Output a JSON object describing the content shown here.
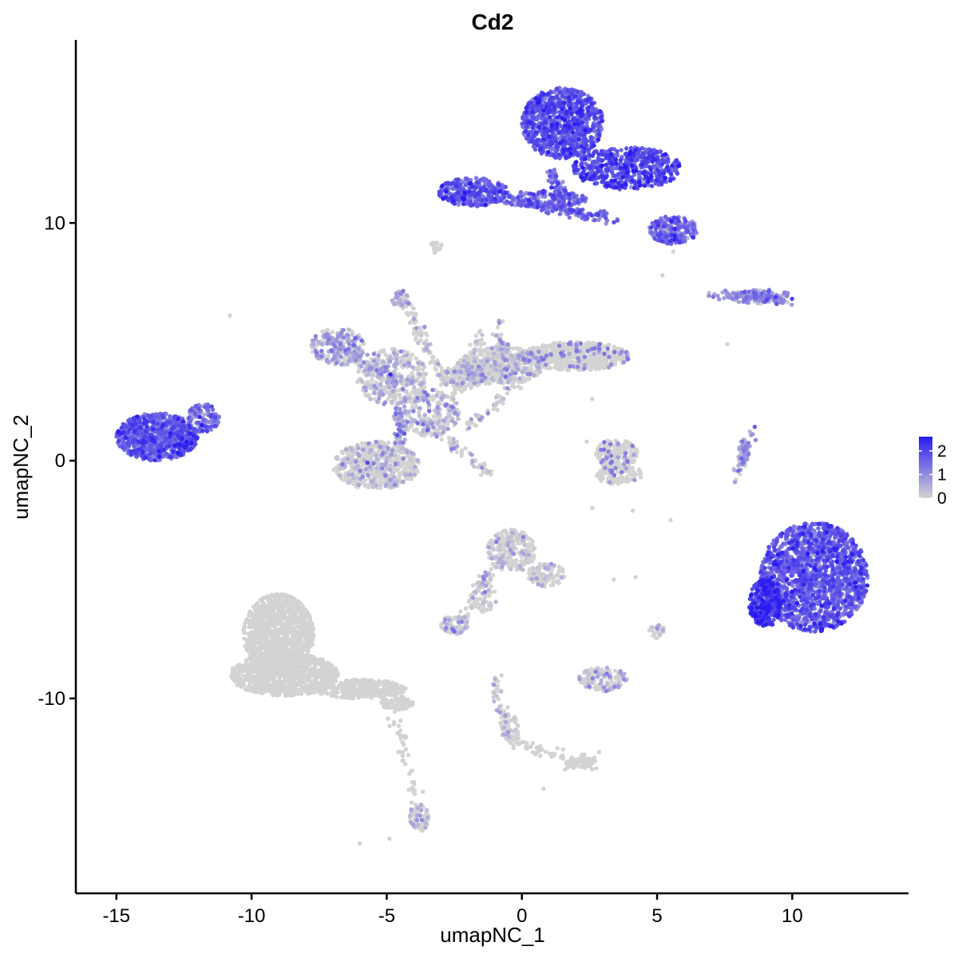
{
  "chart_data": {
    "type": "scatter",
    "title": "Cd2",
    "xlabel": "umapNC_1",
    "ylabel": "umapNC_2",
    "xlim": [
      -16.5,
      14.3
    ],
    "ylim": [
      -18.2,
      17.7
    ],
    "x_ticks": [
      -15,
      -10,
      -5,
      0,
      5,
      10
    ],
    "x_tick_labels": [
      "-15",
      "-10",
      "-5",
      "0",
      "5",
      "10"
    ],
    "y_ticks": [
      -10,
      0,
      10
    ],
    "y_tick_labels": [
      "-10",
      "0",
      "10"
    ],
    "grid": false,
    "legend": {
      "placement": "right",
      "type": "colorbar",
      "ticks": [
        0,
        1,
        2
      ],
      "tick_labels": [
        "0",
        "1",
        "2"
      ],
      "range": [
        0,
        2.6
      ]
    },
    "colors": {
      "low": "#d3d3d3",
      "high": "#2b1bf0"
    },
    "clusters": [
      {
        "cx": 1.5,
        "cy": 14.2,
        "rx": 1.5,
        "ry": 1.5,
        "n": 900,
        "expr": 1.6
      },
      {
        "cx": 3.9,
        "cy": 12.3,
        "rx": 2.0,
        "ry": 0.9,
        "n": 500,
        "expr": 1.8
      },
      {
        "cx": 5.6,
        "cy": 9.7,
        "rx": 0.9,
        "ry": 0.6,
        "n": 220,
        "expr": 1.3
      },
      {
        "cx": -1.8,
        "cy": 11.3,
        "rx": 1.3,
        "ry": 0.6,
        "n": 320,
        "expr": 1.5
      },
      {
        "cx": 0.8,
        "cy": 11.0,
        "rx": 1.6,
        "ry": 0.35,
        "n": 180,
        "expr": 1.3
      },
      {
        "cx": 8.8,
        "cy": 6.9,
        "rx": 1.2,
        "ry": 0.3,
        "n": 120,
        "expr": 0.9
      },
      {
        "cx": -3.2,
        "cy": 9.0,
        "rx": 0.25,
        "ry": 0.25,
        "n": 20,
        "expr": 0.0
      },
      {
        "cx": -13.5,
        "cy": 1.0,
        "rx": 1.5,
        "ry": 1.0,
        "n": 800,
        "expr": 1.5
      },
      {
        "cx": -11.8,
        "cy": 1.8,
        "rx": 0.6,
        "ry": 0.6,
        "n": 120,
        "expr": 1.2
      },
      {
        "cx": -6.8,
        "cy": 4.8,
        "rx": 1.0,
        "ry": 0.8,
        "n": 200,
        "expr": 0.5
      },
      {
        "cx": -4.8,
        "cy": 3.5,
        "rx": 1.3,
        "ry": 1.2,
        "n": 350,
        "expr": 0.2
      },
      {
        "cx": -3.5,
        "cy": 2.0,
        "rx": 1.2,
        "ry": 1.0,
        "n": 250,
        "expr": 0.25
      },
      {
        "cx": -5.4,
        "cy": -0.2,
        "rx": 1.6,
        "ry": 1.0,
        "n": 600,
        "expr": 0.05
      },
      {
        "cx": -2.2,
        "cy": 3.5,
        "rx": 0.8,
        "ry": 0.5,
        "n": 160,
        "expr": 0.1
      },
      {
        "cx": -0.8,
        "cy": 4.0,
        "rx": 1.6,
        "ry": 0.8,
        "n": 500,
        "expr": 0.05
      },
      {
        "cx": 2.0,
        "cy": 4.4,
        "rx": 2.0,
        "ry": 0.6,
        "n": 650,
        "expr": 0.02
      },
      {
        "cx": -4.5,
        "cy": 6.8,
        "rx": 0.3,
        "ry": 0.4,
        "n": 40,
        "expr": 0.3
      },
      {
        "cx": 3.5,
        "cy": 0.3,
        "rx": 0.8,
        "ry": 0.6,
        "n": 180,
        "expr": 0.02
      },
      {
        "cx": 3.6,
        "cy": -0.6,
        "rx": 0.9,
        "ry": 0.4,
        "n": 120,
        "expr": 0.02
      },
      {
        "cx": 8.2,
        "cy": 0.3,
        "rx": 0.2,
        "ry": 0.6,
        "n": 50,
        "expr": 0.6
      },
      {
        "cx": 10.8,
        "cy": -4.9,
        "rx": 2.0,
        "ry": 2.3,
        "n": 1700,
        "expr": 1.5
      },
      {
        "cx": 9.0,
        "cy": -6.0,
        "rx": 0.6,
        "ry": 1.0,
        "n": 300,
        "expr": 2.0
      },
      {
        "cx": -0.4,
        "cy": -3.8,
        "rx": 0.9,
        "ry": 0.9,
        "n": 260,
        "expr": 0.1
      },
      {
        "cx": 0.9,
        "cy": -4.8,
        "rx": 0.7,
        "ry": 0.5,
        "n": 100,
        "expr": 0.05
      },
      {
        "cx": -1.4,
        "cy": -5.6,
        "rx": 0.5,
        "ry": 0.8,
        "n": 70,
        "expr": 0.05
      },
      {
        "cx": -2.5,
        "cy": -6.9,
        "rx": 0.5,
        "ry": 0.4,
        "n": 80,
        "expr": 0.2
      },
      {
        "cx": 5.0,
        "cy": -7.2,
        "rx": 0.3,
        "ry": 0.3,
        "n": 30,
        "expr": 0.1
      },
      {
        "cx": 3.0,
        "cy": -9.2,
        "rx": 0.9,
        "ry": 0.5,
        "n": 140,
        "expr": 0.2
      },
      {
        "cx": -9.0,
        "cy": -7.3,
        "rx": 1.3,
        "ry": 1.7,
        "n": 1100,
        "expr": 0.0
      },
      {
        "cx": -8.8,
        "cy": -9.0,
        "rx": 2.0,
        "ry": 0.9,
        "n": 900,
        "expr": 0.0
      },
      {
        "cx": -6.0,
        "cy": -9.6,
        "rx": 1.7,
        "ry": 0.4,
        "n": 300,
        "expr": 0.0
      },
      {
        "cx": -4.6,
        "cy": -10.2,
        "rx": 0.6,
        "ry": 0.3,
        "n": 80,
        "expr": 0.0
      },
      {
        "cx": -3.8,
        "cy": -15.0,
        "rx": 0.35,
        "ry": 0.6,
        "n": 90,
        "expr": 0.05
      },
      {
        "cx": 2.2,
        "cy": -12.7,
        "rx": 0.6,
        "ry": 0.2,
        "n": 60,
        "expr": 0.0
      },
      {
        "cx": -0.4,
        "cy": -11.3,
        "rx": 0.3,
        "ry": 0.6,
        "n": 50,
        "expr": 0.05
      }
    ],
    "strands": [
      {
        "x1": 0.2,
        "y1": 10.8,
        "x2": 3.4,
        "y2": 10.2,
        "n": 120,
        "expr": 1.4
      },
      {
        "x1": 1.1,
        "y1": 12.2,
        "x2": 1.6,
        "y2": 10.6,
        "n": 60,
        "expr": 1.2
      },
      {
        "x1": 7.0,
        "y1": 7.0,
        "x2": 9.8,
        "y2": 6.8,
        "n": 80,
        "expr": 0.8
      },
      {
        "x1": -4.5,
        "y1": 7.0,
        "x2": -2.8,
        "y2": 3.0,
        "n": 90,
        "expr": 0.1
      },
      {
        "x1": -7.0,
        "y1": 5.0,
        "x2": -4.6,
        "y2": 3.2,
        "n": 110,
        "expr": 0.5
      },
      {
        "x1": -4.5,
        "y1": 2.2,
        "x2": -4.6,
        "y2": 0.8,
        "n": 60,
        "expr": 0.6
      },
      {
        "x1": -3.5,
        "y1": 1.6,
        "x2": -1.2,
        "y2": -0.6,
        "n": 60,
        "expr": 0.05
      },
      {
        "x1": -2.5,
        "y1": 2.6,
        "x2": -1.5,
        "y2": 5.4,
        "n": 60,
        "expr": 0.05
      },
      {
        "x1": -0.9,
        "y1": 5.8,
        "x2": -0.5,
        "y2": 3.2,
        "n": 50,
        "expr": 0.4
      },
      {
        "x1": -0.2,
        "y1": 3.2,
        "x2": -2.0,
        "y2": 1.4,
        "n": 40,
        "expr": 0.1
      },
      {
        "x1": -5.0,
        "y1": -9.8,
        "x2": -3.8,
        "y2": -14.8,
        "n": 60,
        "expr": 0.0
      },
      {
        "x1": -1.0,
        "y1": -9.2,
        "x2": -0.4,
        "y2": -12.0,
        "n": 60,
        "expr": 0.1
      },
      {
        "x1": -0.4,
        "y1": -11.8,
        "x2": 2.6,
        "y2": -12.8,
        "n": 60,
        "expr": 0.0
      },
      {
        "x1": 7.9,
        "y1": -0.8,
        "x2": 8.5,
        "y2": 1.2,
        "n": 40,
        "expr": 0.7
      },
      {
        "x1": -2.2,
        "y1": -6.8,
        "x2": -1.1,
        "y2": -4.5,
        "n": 40,
        "expr": 0.05
      },
      {
        "x1": 1.7,
        "y1": -12.8,
        "x2": 2.6,
        "y2": -12.4,
        "n": 30,
        "expr": 0.0
      }
    ],
    "outliers": [
      [
        -10.8,
        6.1
      ],
      [
        -6.0,
        -16.1
      ],
      [
        -4.9,
        -15.9
      ],
      [
        2.6,
        -2.0
      ],
      [
        4.1,
        -2.1
      ],
      [
        5.5,
        -2.5
      ],
      [
        0.8,
        -13.8
      ],
      [
        4.2,
        -4.9
      ],
      [
        3.4,
        -5.0
      ],
      [
        2.4,
        0.8
      ],
      [
        2.6,
        2.6
      ],
      [
        7.6,
        4.9
      ],
      [
        5.2,
        7.8
      ],
      [
        5.6,
        8.8
      ]
    ]
  }
}
